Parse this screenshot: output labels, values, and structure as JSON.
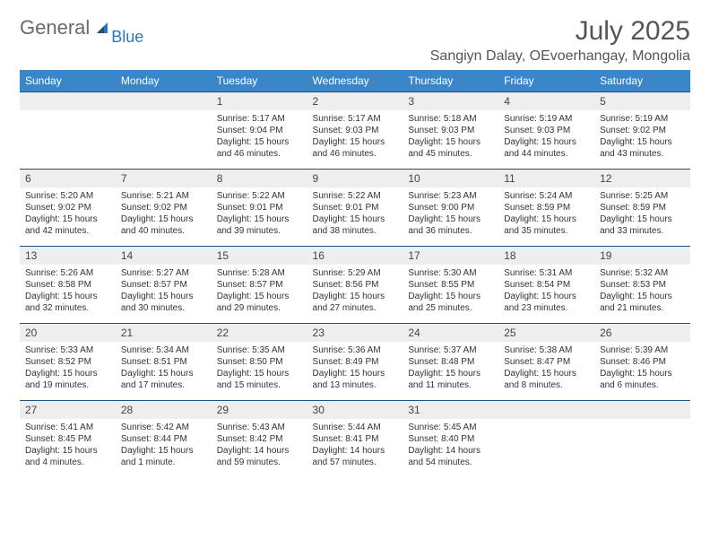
{
  "brand": {
    "general": "General",
    "blue": "Blue"
  },
  "title": "July 2025",
  "location": "Sangiyn Dalay, OEvoerhangay, Mongolia",
  "colors": {
    "header_bg": "#3b86c8",
    "header_fg": "#ffffff",
    "daynum_bg": "#eeeeee",
    "daynum_border": "#1f4e79",
    "page_bg": "#ffffff",
    "text": "#333333",
    "brand_gray": "#6a6a6a",
    "brand_blue": "#2f77bb"
  },
  "day_names": [
    "Sunday",
    "Monday",
    "Tuesday",
    "Wednesday",
    "Thursday",
    "Friday",
    "Saturday"
  ],
  "weeks": [
    [
      {
        "n": "",
        "lines": []
      },
      {
        "n": "",
        "lines": []
      },
      {
        "n": "1",
        "lines": [
          "Sunrise: 5:17 AM",
          "Sunset: 9:04 PM",
          "Daylight: 15 hours and 46 minutes."
        ]
      },
      {
        "n": "2",
        "lines": [
          "Sunrise: 5:17 AM",
          "Sunset: 9:03 PM",
          "Daylight: 15 hours and 46 minutes."
        ]
      },
      {
        "n": "3",
        "lines": [
          "Sunrise: 5:18 AM",
          "Sunset: 9:03 PM",
          "Daylight: 15 hours and 45 minutes."
        ]
      },
      {
        "n": "4",
        "lines": [
          "Sunrise: 5:19 AM",
          "Sunset: 9:03 PM",
          "Daylight: 15 hours and 44 minutes."
        ]
      },
      {
        "n": "5",
        "lines": [
          "Sunrise: 5:19 AM",
          "Sunset: 9:02 PM",
          "Daylight: 15 hours and 43 minutes."
        ]
      }
    ],
    [
      {
        "n": "6",
        "lines": [
          "Sunrise: 5:20 AM",
          "Sunset: 9:02 PM",
          "Daylight: 15 hours and 42 minutes."
        ]
      },
      {
        "n": "7",
        "lines": [
          "Sunrise: 5:21 AM",
          "Sunset: 9:02 PM",
          "Daylight: 15 hours and 40 minutes."
        ]
      },
      {
        "n": "8",
        "lines": [
          "Sunrise: 5:22 AM",
          "Sunset: 9:01 PM",
          "Daylight: 15 hours and 39 minutes."
        ]
      },
      {
        "n": "9",
        "lines": [
          "Sunrise: 5:22 AM",
          "Sunset: 9:01 PM",
          "Daylight: 15 hours and 38 minutes."
        ]
      },
      {
        "n": "10",
        "lines": [
          "Sunrise: 5:23 AM",
          "Sunset: 9:00 PM",
          "Daylight: 15 hours and 36 minutes."
        ]
      },
      {
        "n": "11",
        "lines": [
          "Sunrise: 5:24 AM",
          "Sunset: 8:59 PM",
          "Daylight: 15 hours and 35 minutes."
        ]
      },
      {
        "n": "12",
        "lines": [
          "Sunrise: 5:25 AM",
          "Sunset: 8:59 PM",
          "Daylight: 15 hours and 33 minutes."
        ]
      }
    ],
    [
      {
        "n": "13",
        "lines": [
          "Sunrise: 5:26 AM",
          "Sunset: 8:58 PM",
          "Daylight: 15 hours and 32 minutes."
        ]
      },
      {
        "n": "14",
        "lines": [
          "Sunrise: 5:27 AM",
          "Sunset: 8:57 PM",
          "Daylight: 15 hours and 30 minutes."
        ]
      },
      {
        "n": "15",
        "lines": [
          "Sunrise: 5:28 AM",
          "Sunset: 8:57 PM",
          "Daylight: 15 hours and 29 minutes."
        ]
      },
      {
        "n": "16",
        "lines": [
          "Sunrise: 5:29 AM",
          "Sunset: 8:56 PM",
          "Daylight: 15 hours and 27 minutes."
        ]
      },
      {
        "n": "17",
        "lines": [
          "Sunrise: 5:30 AM",
          "Sunset: 8:55 PM",
          "Daylight: 15 hours and 25 minutes."
        ]
      },
      {
        "n": "18",
        "lines": [
          "Sunrise: 5:31 AM",
          "Sunset: 8:54 PM",
          "Daylight: 15 hours and 23 minutes."
        ]
      },
      {
        "n": "19",
        "lines": [
          "Sunrise: 5:32 AM",
          "Sunset: 8:53 PM",
          "Daylight: 15 hours and 21 minutes."
        ]
      }
    ],
    [
      {
        "n": "20",
        "lines": [
          "Sunrise: 5:33 AM",
          "Sunset: 8:52 PM",
          "Daylight: 15 hours and 19 minutes."
        ]
      },
      {
        "n": "21",
        "lines": [
          "Sunrise: 5:34 AM",
          "Sunset: 8:51 PM",
          "Daylight: 15 hours and 17 minutes."
        ]
      },
      {
        "n": "22",
        "lines": [
          "Sunrise: 5:35 AM",
          "Sunset: 8:50 PM",
          "Daylight: 15 hours and 15 minutes."
        ]
      },
      {
        "n": "23",
        "lines": [
          "Sunrise: 5:36 AM",
          "Sunset: 8:49 PM",
          "Daylight: 15 hours and 13 minutes."
        ]
      },
      {
        "n": "24",
        "lines": [
          "Sunrise: 5:37 AM",
          "Sunset: 8:48 PM",
          "Daylight: 15 hours and 11 minutes."
        ]
      },
      {
        "n": "25",
        "lines": [
          "Sunrise: 5:38 AM",
          "Sunset: 8:47 PM",
          "Daylight: 15 hours and 8 minutes."
        ]
      },
      {
        "n": "26",
        "lines": [
          "Sunrise: 5:39 AM",
          "Sunset: 8:46 PM",
          "Daylight: 15 hours and 6 minutes."
        ]
      }
    ],
    [
      {
        "n": "27",
        "lines": [
          "Sunrise: 5:41 AM",
          "Sunset: 8:45 PM",
          "Daylight: 15 hours and 4 minutes."
        ]
      },
      {
        "n": "28",
        "lines": [
          "Sunrise: 5:42 AM",
          "Sunset: 8:44 PM",
          "Daylight: 15 hours and 1 minute."
        ]
      },
      {
        "n": "29",
        "lines": [
          "Sunrise: 5:43 AM",
          "Sunset: 8:42 PM",
          "Daylight: 14 hours and 59 minutes."
        ]
      },
      {
        "n": "30",
        "lines": [
          "Sunrise: 5:44 AM",
          "Sunset: 8:41 PM",
          "Daylight: 14 hours and 57 minutes."
        ]
      },
      {
        "n": "31",
        "lines": [
          "Sunrise: 5:45 AM",
          "Sunset: 8:40 PM",
          "Daylight: 14 hours and 54 minutes."
        ]
      },
      {
        "n": "",
        "lines": []
      },
      {
        "n": "",
        "lines": []
      }
    ]
  ]
}
